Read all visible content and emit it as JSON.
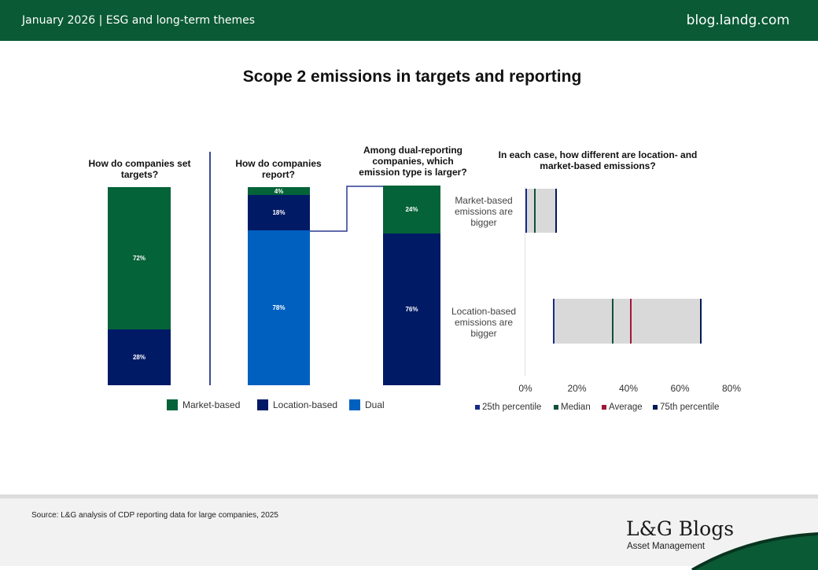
{
  "header": {
    "left": "January 2026 |  ESG and long-term themes",
    "right": "blog.landg.com"
  },
  "title": "Scope 2 emissions in targets and reporting",
  "colors": {
    "market": "#046338",
    "location": "#001a66",
    "dual": "#0060c0",
    "median": "#0f5040",
    "average": "#a0163a",
    "p25": "#1a2a88",
    "p75": "#001a55",
    "range": "#d9d9d9"
  },
  "chart_data": [
    {
      "type": "bar",
      "stacked": true,
      "title": "How do companies set targets?",
      "series": [
        {
          "name": "Location-based",
          "value": 28,
          "label": "28%"
        },
        {
          "name": "Market-based",
          "value": 72,
          "label": "72%"
        }
      ]
    },
    {
      "type": "bar",
      "stacked": true,
      "title": "How do companies report?",
      "series": [
        {
          "name": "Dual",
          "value": 78,
          "label": "78%"
        },
        {
          "name": "Location-based",
          "value": 18,
          "label": "18%"
        },
        {
          "name": "Market-based",
          "value": 4,
          "label": "4%"
        }
      ]
    },
    {
      "type": "bar",
      "stacked": true,
      "title": "Among dual-reporting companies, which emission type is larger?",
      "series": [
        {
          "name": "Location-based",
          "value": 76,
          "label": "76%"
        },
        {
          "name": "Market-based",
          "value": 24,
          "label": "24%"
        }
      ]
    },
    {
      "type": "range",
      "title": "In each case, how different are location- and market-based emissions?",
      "xlim": [
        0,
        80
      ],
      "ticks": [
        "0%",
        "20%",
        "40%",
        "60%",
        "80%"
      ],
      "categories": [
        "Market-based emissions are bigger",
        "Location-based emissions are bigger"
      ],
      "series": [
        {
          "name": "25th percentile",
          "values": [
            0.3,
            11
          ]
        },
        {
          "name": "Median",
          "values": [
            3.7,
            34
          ]
        },
        {
          "name": "Average",
          "values": [
            12,
            41
          ]
        },
        {
          "name": "75th percentile",
          "values": [
            12,
            68
          ]
        }
      ]
    }
  ],
  "legend": [
    "Market-based",
    "Location-based",
    "Dual"
  ],
  "footer": {
    "source": "Source: L&G analysis of CDP reporting data for large companies, 2025",
    "logo": "L&G Blogs",
    "sub": "Asset Management"
  }
}
